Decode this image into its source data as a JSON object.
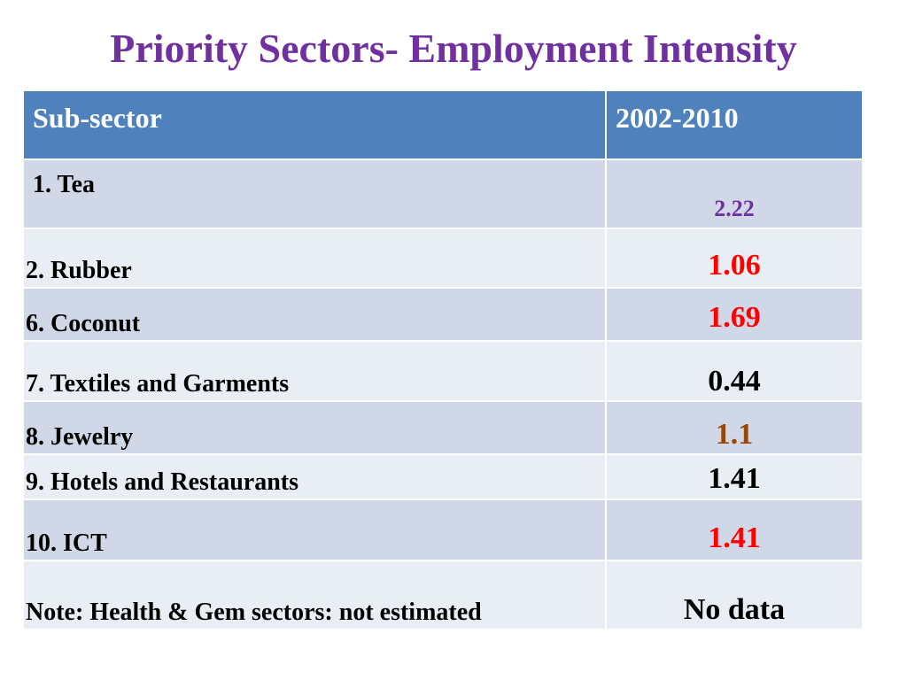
{
  "title": "Priority Sectors- Employment Intensity",
  "table": {
    "headers": [
      "Sub-sector",
      "2002-2010"
    ],
    "rows": [
      {
        "label": "1. Tea",
        "value": "2.22",
        "color": "#7030a0"
      },
      {
        "label": "2. Rubber",
        "value": "1.06",
        "color": "#ff0000"
      },
      {
        "label": "6. Coconut",
        "value": "1.69",
        "color": "#ff0000"
      },
      {
        "label": "7. Textiles and Garments",
        "value": "0.44",
        "color": "#000000"
      },
      {
        "label": "8. Jewelry",
        "value": "1.1",
        "color": "#974806"
      },
      {
        "label": "9. Hotels and Restaurants",
        "value": "1.41",
        "color": "#000000"
      },
      {
        "label": "10. ICT",
        "value": "1.41",
        "color": "#ff0000"
      },
      {
        "label": "Note: Health & Gem sectors: not estimated",
        "value": "No data",
        "color": "#000000"
      }
    ]
  }
}
